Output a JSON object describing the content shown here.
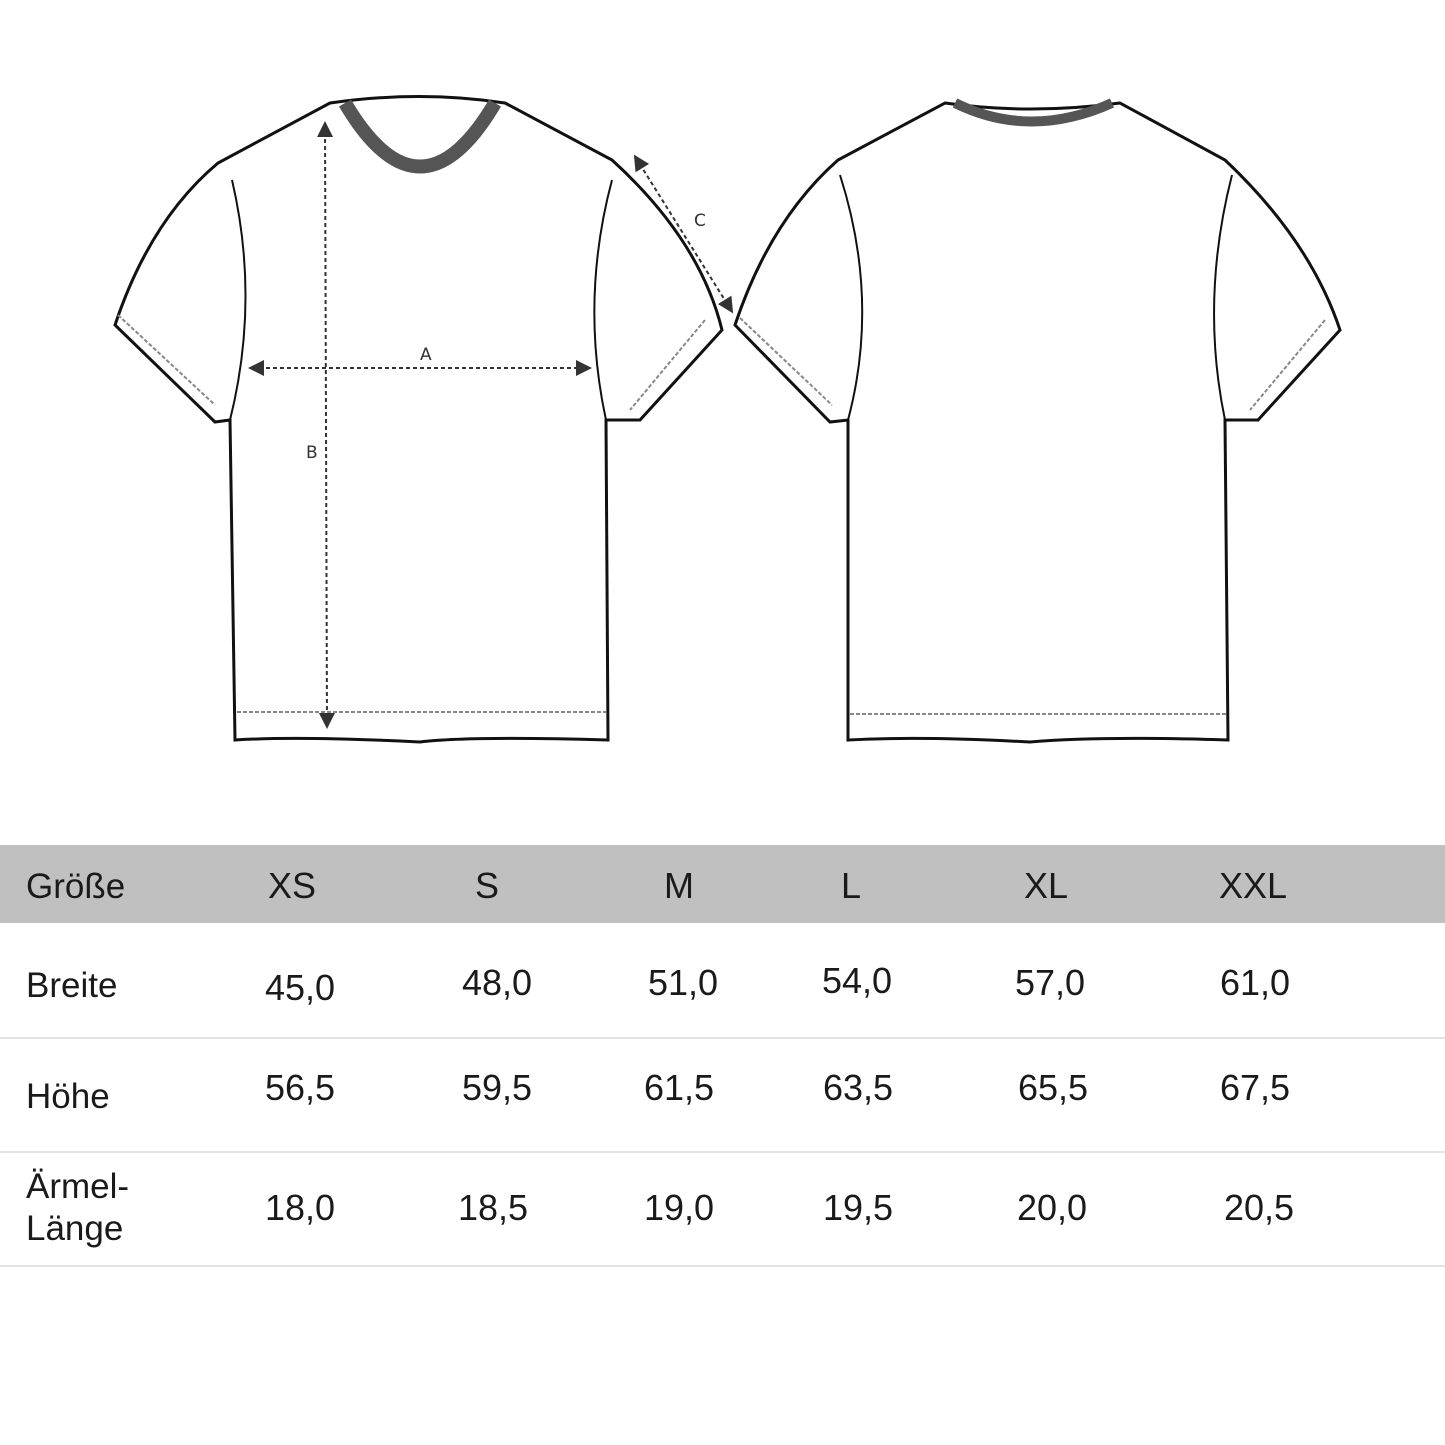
{
  "diagram": {
    "views": [
      "front",
      "back"
    ],
    "dimension_labels": {
      "width": "A",
      "height": "B",
      "sleeve": "C"
    }
  },
  "table": {
    "header_label": "Größe",
    "sizes": [
      "XS",
      "S",
      "M",
      "L",
      "XL",
      "XXL"
    ],
    "rows": [
      {
        "label": "Breite",
        "values": [
          "45,0",
          "48,0",
          "51,0",
          "54,0",
          "57,0",
          "61,0"
        ]
      },
      {
        "label": "Höhe",
        "values": [
          "56,5",
          "59,5",
          "61,5",
          "63,5",
          "65,5",
          "67,5"
        ]
      },
      {
        "label_line1": "Ärmel-",
        "label_line2": "Länge",
        "values": [
          "18,0",
          "18,5",
          "19,0",
          "19,5",
          "20,0",
          "20,5"
        ]
      }
    ],
    "header_color": "#c0c0c0"
  }
}
